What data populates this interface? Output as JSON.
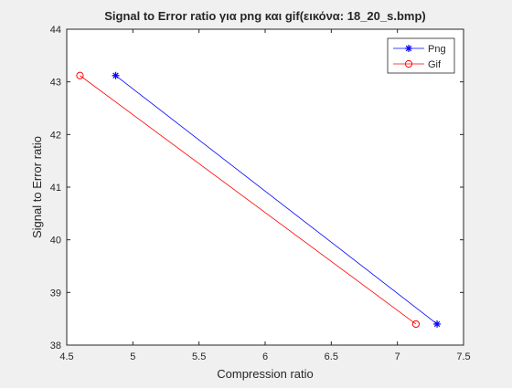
{
  "chart_data": {
    "type": "line",
    "title": "Signal to Error ratio για png και gif(εικόνα: 18_20_s.bmp)",
    "xlabel": "Compression ratio",
    "ylabel": "Signal to Error ratio",
    "xlim": [
      4.5,
      7.5
    ],
    "ylim": [
      38,
      44
    ],
    "xticks": [
      4.5,
      5,
      5.5,
      6,
      6.5,
      7,
      7.5
    ],
    "xtick_labels": [
      "4.5",
      "5",
      "5.5",
      "6",
      "6.5",
      "7",
      "7.5"
    ],
    "yticks": [
      38,
      39,
      40,
      41,
      42,
      43,
      44
    ],
    "ytick_labels": [
      "38",
      "39",
      "40",
      "41",
      "42",
      "43",
      "44"
    ],
    "grid": false,
    "legend_position": "top-right",
    "series": [
      {
        "name": "Png",
        "color": "#0000ff",
        "marker": "asterisk",
        "x": [
          4.87,
          7.3
        ],
        "y": [
          43.12,
          38.4
        ]
      },
      {
        "name": "Gif",
        "color": "#ff0000",
        "marker": "circle",
        "x": [
          4.6,
          7.14
        ],
        "y": [
          43.12,
          38.4
        ]
      }
    ]
  }
}
